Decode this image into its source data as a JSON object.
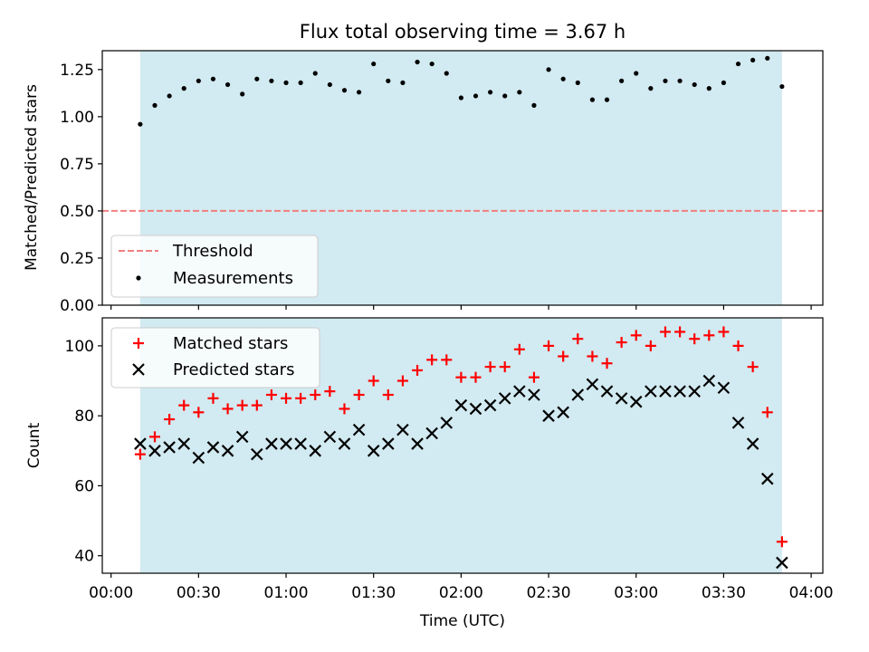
{
  "title": "Flux total observing time = 3.67 h",
  "colors": {
    "shade": "#add8e6",
    "threshold": "#f08080",
    "measurement": "#000000",
    "matched": "#ff0000",
    "predicted": "#000000"
  },
  "chart_data": [
    {
      "type": "scatter",
      "panel": "top",
      "title": "Flux total observing time = 3.67 h",
      "ylabel": "Matched/Predicted stars",
      "xlabel": "",
      "xlim": [
        -3,
        244
      ],
      "ylim": [
        0,
        1.35
      ],
      "xticks": [
        0,
        30,
        60,
        90,
        120,
        150,
        180,
        210,
        240
      ],
      "yticks": [
        0.0,
        0.25,
        0.5,
        0.75,
        1.0,
        1.25
      ],
      "ytick_labels": [
        "0.00",
        "0.25",
        "0.50",
        "0.75",
        "1.00",
        "1.25"
      ],
      "shaded_span": [
        "00:10",
        "03:50"
      ],
      "grid": false,
      "legend": "lower-left",
      "legend_entries": [
        "Threshold",
        "Measurements"
      ],
      "threshold": {
        "name": "Threshold",
        "value": 0.5,
        "style": "dashed"
      },
      "series": [
        {
          "name": "Measurements",
          "marker": "dot",
          "x": [
            10,
            15,
            20,
            25,
            30,
            35,
            40,
            45,
            50,
            55,
            60,
            65,
            70,
            75,
            80,
            85,
            90,
            95,
            100,
            105,
            110,
            115,
            120,
            125,
            130,
            135,
            140,
            145,
            150,
            155,
            160,
            165,
            170,
            175,
            180,
            185,
            190,
            195,
            200,
            205,
            210,
            215,
            220,
            225,
            230,
            235,
            240
          ],
          "y": [
            0.96,
            1.06,
            1.11,
            1.15,
            1.19,
            1.2,
            1.17,
            1.12,
            1.2,
            1.19,
            1.18,
            1.18,
            1.23,
            1.17,
            1.14,
            1.13,
            1.28,
            1.19,
            1.18,
            1.29,
            1.28,
            1.23,
            1.1,
            1.11,
            1.13,
            1.11,
            1.13,
            1.06,
            1.25,
            1.2,
            1.18,
            1.09,
            1.09,
            1.19,
            1.23,
            1.15,
            1.19,
            1.19,
            1.17,
            1.15,
            1.18,
            1.28,
            1.3,
            1.31,
            1.16,
            null,
            null
          ]
        }
      ]
    },
    {
      "type": "scatter",
      "panel": "bottom",
      "xlabel": "Time (UTC)",
      "ylabel": "Count",
      "xlim": [
        -3,
        244
      ],
      "ylim": [
        35,
        108
      ],
      "xticks": [
        0,
        30,
        60,
        90,
        120,
        150,
        180,
        210,
        240
      ],
      "xtick_labels": [
        "00:00",
        "00:30",
        "01:00",
        "01:30",
        "02:00",
        "02:30",
        "03:00",
        "03:30",
        "04:00"
      ],
      "yticks": [
        40,
        60,
        80,
        100
      ],
      "ytick_labels": [
        "40",
        "60",
        "80",
        "100"
      ],
      "shaded_span": [
        "00:10",
        "03:50"
      ],
      "grid": false,
      "legend": "top-left",
      "legend_entries": [
        "Matched stars",
        "Predicted stars"
      ],
      "series": [
        {
          "name": "Matched stars",
          "marker": "plus",
          "x": [
            10,
            15,
            20,
            25,
            30,
            35,
            40,
            45,
            50,
            55,
            60,
            65,
            70,
            75,
            80,
            85,
            90,
            95,
            100,
            105,
            110,
            115,
            120,
            125,
            130,
            135,
            140,
            145,
            150,
            155,
            160,
            165,
            170,
            175,
            180,
            185,
            190,
            195,
            200,
            205,
            210,
            215,
            220,
            225,
            230
          ],
          "y": [
            69,
            74,
            79,
            83,
            81,
            85,
            82,
            83,
            83,
            86,
            85,
            85,
            86,
            87,
            82,
            86,
            90,
            86,
            90,
            93,
            96,
            96,
            91,
            91,
            94,
            94,
            99,
            91,
            100,
            97,
            102,
            97,
            95,
            101,
            103,
            100,
            104,
            104,
            102,
            103,
            104,
            100,
            94,
            81,
            44
          ]
        },
        {
          "name": "Predicted stars",
          "marker": "x",
          "x": [
            10,
            15,
            20,
            25,
            30,
            35,
            40,
            45,
            50,
            55,
            60,
            65,
            70,
            75,
            80,
            85,
            90,
            95,
            100,
            105,
            110,
            115,
            120,
            125,
            130,
            135,
            140,
            145,
            150,
            155,
            160,
            165,
            170,
            175,
            180,
            185,
            190,
            195,
            200,
            205,
            210,
            215,
            220,
            225,
            230
          ],
          "y": [
            72,
            70,
            71,
            72,
            68,
            71,
            70,
            74,
            69,
            72,
            72,
            72,
            70,
            74,
            72,
            76,
            70,
            72,
            76,
            72,
            75,
            78,
            83,
            82,
            83,
            85,
            87,
            86,
            80,
            81,
            86,
            89,
            87,
            85,
            84,
            87,
            87,
            87,
            87,
            90,
            88,
            78,
            72,
            62,
            38
          ]
        }
      ]
    }
  ]
}
